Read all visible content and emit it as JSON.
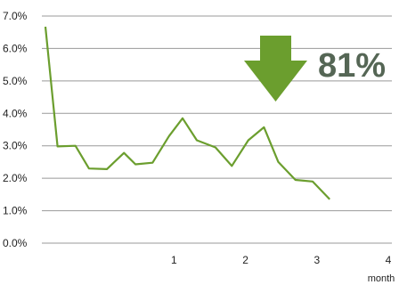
{
  "chart_data": {
    "type": "line",
    "title": "",
    "xlabel": "month",
    "ylabel": "",
    "xlim": [
      -0.85,
      4.05
    ],
    "ylim": [
      0,
      7
    ],
    "grid": true,
    "y_ticks": [
      0,
      1,
      2,
      3,
      4,
      5,
      6,
      7
    ],
    "y_tick_labels": [
      "0.0%",
      "1.0%",
      "2.0%",
      "3.0%",
      "4.0%",
      "5.0%",
      "6.0%",
      "7.0%"
    ],
    "x_ticks": [
      1,
      2,
      3,
      4
    ],
    "x_tick_labels": [
      "1",
      "2",
      "3",
      "4"
    ],
    "annotation": {
      "text": "81%",
      "icon": "down-arrow-icon"
    },
    "series": [
      {
        "color": "#6B9E2E",
        "x": [
          -0.8,
          -0.63,
          -0.38,
          -0.19,
          0.06,
          0.3,
          0.46,
          0.7,
          0.93,
          1.12,
          1.32,
          1.58,
          1.81,
          2.04,
          2.26,
          2.46,
          2.7,
          2.94,
          3.18,
          3.4,
          3.58,
          3.8,
          4.0
        ],
        "y": [
          6.67,
          2.98,
          3.0,
          2.3,
          2.28,
          2.78,
          2.43,
          2.48,
          3.3,
          3.85,
          3.17,
          2.95,
          2.38,
          3.17,
          3.57,
          2.5,
          1.95,
          1.9,
          1.35,
          null,
          null,
          null,
          null
        ]
      }
    ]
  }
}
